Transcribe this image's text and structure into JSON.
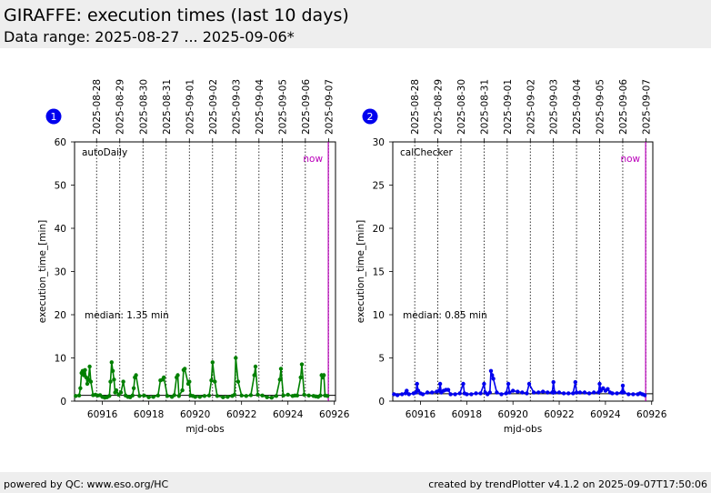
{
  "header": {
    "title": "GIRAFFE: execution times (last 10 days)",
    "subtitle": "Data range: 2025-08-27 ... 2025-09-06*"
  },
  "footer": {
    "left": "powered by QC: www.eso.org/HC",
    "right": "created by trendPlotter v4.1.2 on 2025-09-07T17:50:06"
  },
  "colors": {
    "series1": "#008000",
    "series2": "#0000ee",
    "now_line": "#bb00bb",
    "badge": "#0000ee"
  },
  "chart_data": [
    {
      "type": "line",
      "badge": "1",
      "panel_label": "autoDaily",
      "median_label": "median: 1.35 min",
      "now_label": "now",
      "xlabel": "mjd-obs",
      "ylabel": "execution_time_[min]",
      "xlim": [
        60914.8,
        60926.05
      ],
      "ylim": [
        0,
        60
      ],
      "xticks": [
        60916,
        60918,
        60920,
        60922,
        60924,
        60926
      ],
      "yticks": [
        0,
        10,
        20,
        30,
        40,
        50,
        60
      ],
      "date_ticks": [
        {
          "mjd": 60915.75,
          "label": "2025-08-28"
        },
        {
          "mjd": 60916.75,
          "label": "2025-08-29"
        },
        {
          "mjd": 60917.75,
          "label": "2025-08-30"
        },
        {
          "mjd": 60918.75,
          "label": "2025-08-31"
        },
        {
          "mjd": 60919.75,
          "label": "2025-09-01"
        },
        {
          "mjd": 60920.75,
          "label": "2025-09-02"
        },
        {
          "mjd": 60921.75,
          "label": "2025-09-03"
        },
        {
          "mjd": 60922.75,
          "label": "2025-09-04"
        },
        {
          "mjd": 60923.75,
          "label": "2025-09-05"
        },
        {
          "mjd": 60924.75,
          "label": "2025-09-06"
        },
        {
          "mjd": 60925.75,
          "label": "2025-09-07"
        }
      ],
      "now_mjd": 60925.74,
      "median": 1.35,
      "series": [
        {
          "x": [
            60914.85,
            60915.0,
            60915.05,
            60915.1,
            60915.15,
            60915.2,
            60915.25,
            60915.3,
            60915.35,
            60915.4,
            60915.45,
            60915.5,
            60915.6,
            60915.7,
            60915.8,
            60915.9,
            60916.0,
            60916.1,
            60916.2,
            60916.3,
            60916.35,
            60916.4,
            60916.45,
            60916.5,
            60916.55,
            60916.6,
            60916.7,
            60916.8,
            60916.9,
            60917.0,
            60917.1,
            60917.2,
            60917.3,
            60917.35,
            60917.4,
            60917.45,
            60917.6,
            60917.8,
            60918.0,
            60918.2,
            60918.4,
            60918.5,
            60918.6,
            60918.65,
            60918.8,
            60919.0,
            60919.1,
            60919.2,
            60919.25,
            60919.3,
            60919.45,
            60919.5,
            60919.55,
            60919.7,
            60919.75,
            60919.8,
            60919.9,
            60920.0,
            60920.2,
            60920.4,
            60920.6,
            60920.7,
            60920.75,
            60920.85,
            60920.95,
            60921.2,
            60921.4,
            60921.6,
            60921.7,
            60921.75,
            60921.85,
            60922.0,
            60922.2,
            60922.4,
            60922.55,
            60922.6,
            60922.7,
            60922.9,
            60923.1,
            60923.3,
            60923.5,
            60923.65,
            60923.7,
            60923.8,
            60924.0,
            60924.2,
            60924.3,
            60924.4,
            60924.55,
            60924.6,
            60924.7,
            60924.9,
            60925.1,
            60925.2,
            60925.3,
            60925.4,
            60925.45,
            60925.5,
            60925.55,
            60925.6,
            60925.7
          ],
          "values": [
            1.2,
            1.3,
            3.0,
            6.5,
            7.0,
            6.0,
            7.2,
            5.5,
            4.0,
            5.0,
            8.0,
            4.5,
            1.4,
            1.5,
            1.3,
            1.4,
            1.0,
            0.8,
            0.9,
            1.2,
            4.5,
            9.0,
            7.0,
            5.0,
            2.0,
            2.5,
            1.5,
            2.0,
            4.5,
            1.3,
            1.0,
            0.9,
            1.3,
            3.0,
            5.5,
            6.0,
            1.2,
            1.3,
            0.9,
            1.0,
            1.3,
            4.8,
            5.0,
            5.5,
            1.2,
            1.0,
            1.4,
            5.5,
            6.0,
            1.2,
            2.5,
            7.2,
            7.5,
            4.0,
            4.5,
            1.3,
            1.2,
            1.0,
            1.0,
            1.2,
            1.3,
            4.8,
            9.0,
            4.5,
            1.2,
            0.9,
            1.0,
            1.2,
            1.5,
            10.0,
            4.5,
            1.3,
            1.2,
            1.4,
            6.0,
            8.0,
            1.5,
            1.3,
            0.9,
            0.8,
            1.2,
            5.0,
            7.5,
            1.3,
            1.5,
            1.2,
            1.3,
            1.3,
            5.5,
            8.5,
            1.5,
            1.3,
            1.2,
            1.1,
            1.0,
            1.3,
            6.0,
            5.5,
            6.0,
            1.3,
            1.2
          ]
        }
      ]
    },
    {
      "type": "line",
      "badge": "2",
      "panel_label": "calChecker",
      "median_label": "median: 0.85 min",
      "now_label": "now",
      "xlabel": "mjd-obs",
      "ylabel": "execution_time_[min]",
      "xlim": [
        60914.8,
        60926.05
      ],
      "ylim": [
        0,
        30
      ],
      "xticks": [
        60916,
        60918,
        60920,
        60922,
        60924,
        60926
      ],
      "yticks": [
        0,
        5,
        10,
        15,
        20,
        25,
        30
      ],
      "date_ticks": [
        {
          "mjd": 60915.75,
          "label": "2025-08-28"
        },
        {
          "mjd": 60916.75,
          "label": "2025-08-29"
        },
        {
          "mjd": 60917.75,
          "label": "2025-08-30"
        },
        {
          "mjd": 60918.75,
          "label": "2025-08-31"
        },
        {
          "mjd": 60919.75,
          "label": "2025-09-01"
        },
        {
          "mjd": 60920.75,
          "label": "2025-09-02"
        },
        {
          "mjd": 60921.75,
          "label": "2025-09-03"
        },
        {
          "mjd": 60922.75,
          "label": "2025-09-04"
        },
        {
          "mjd": 60923.75,
          "label": "2025-09-05"
        },
        {
          "mjd": 60924.75,
          "label": "2025-09-06"
        },
        {
          "mjd": 60925.75,
          "label": "2025-09-07"
        }
      ],
      "now_mjd": 60925.74,
      "median": 0.85,
      "series": [
        {
          "x": [
            60914.85,
            60915.0,
            60915.2,
            60915.35,
            60915.4,
            60915.5,
            60915.7,
            60915.8,
            60915.85,
            60915.9,
            60916.0,
            60916.1,
            60916.3,
            60916.5,
            60916.7,
            60916.8,
            60916.85,
            60916.9,
            60917.0,
            60917.1,
            60917.2,
            60917.3,
            60917.5,
            60917.7,
            60917.85,
            60917.9,
            60918.0,
            60918.2,
            60918.4,
            60918.6,
            60918.75,
            60918.8,
            60918.9,
            60919.0,
            60919.05,
            60919.1,
            60919.15,
            60919.3,
            60919.5,
            60919.7,
            60919.8,
            60919.85,
            60920.0,
            60920.2,
            60920.4,
            60920.6,
            60920.7,
            60920.9,
            60921.1,
            60921.3,
            60921.5,
            60921.7,
            60921.75,
            60921.8,
            60922.0,
            60922.2,
            60922.4,
            60922.6,
            60922.7,
            60922.75,
            60922.9,
            60923.1,
            60923.3,
            60923.5,
            60923.7,
            60923.75,
            60923.8,
            60923.9,
            60924.0,
            60924.1,
            60924.2,
            60924.3,
            60924.5,
            60924.7,
            60924.75,
            60924.8,
            60925.0,
            60925.2,
            60925.4,
            60925.5,
            60925.6,
            60925.7
          ],
          "values": [
            0.8,
            0.7,
            0.8,
            0.9,
            1.2,
            0.8,
            0.9,
            1.0,
            2.0,
            1.2,
            0.9,
            0.8,
            1.0,
            1.0,
            1.1,
            1.2,
            2.0,
            1.0,
            1.2,
            1.3,
            1.3,
            0.8,
            0.8,
            0.9,
            2.0,
            0.9,
            0.8,
            0.8,
            0.9,
            0.9,
            2.0,
            1.0,
            0.8,
            1.0,
            3.5,
            3.0,
            2.6,
            1.0,
            0.8,
            0.9,
            2.0,
            1.0,
            1.2,
            1.1,
            1.0,
            0.9,
            2.0,
            1.0,
            1.0,
            1.1,
            1.0,
            1.0,
            2.2,
            1.0,
            1.0,
            0.9,
            0.9,
            0.9,
            2.2,
            1.0,
            1.0,
            1.0,
            0.9,
            1.0,
            1.0,
            2.0,
            1.2,
            1.5,
            1.2,
            1.4,
            1.0,
            0.9,
            0.9,
            1.0,
            1.8,
            1.0,
            0.8,
            0.8,
            0.8,
            0.9,
            0.8,
            0.7
          ]
        }
      ]
    }
  ]
}
